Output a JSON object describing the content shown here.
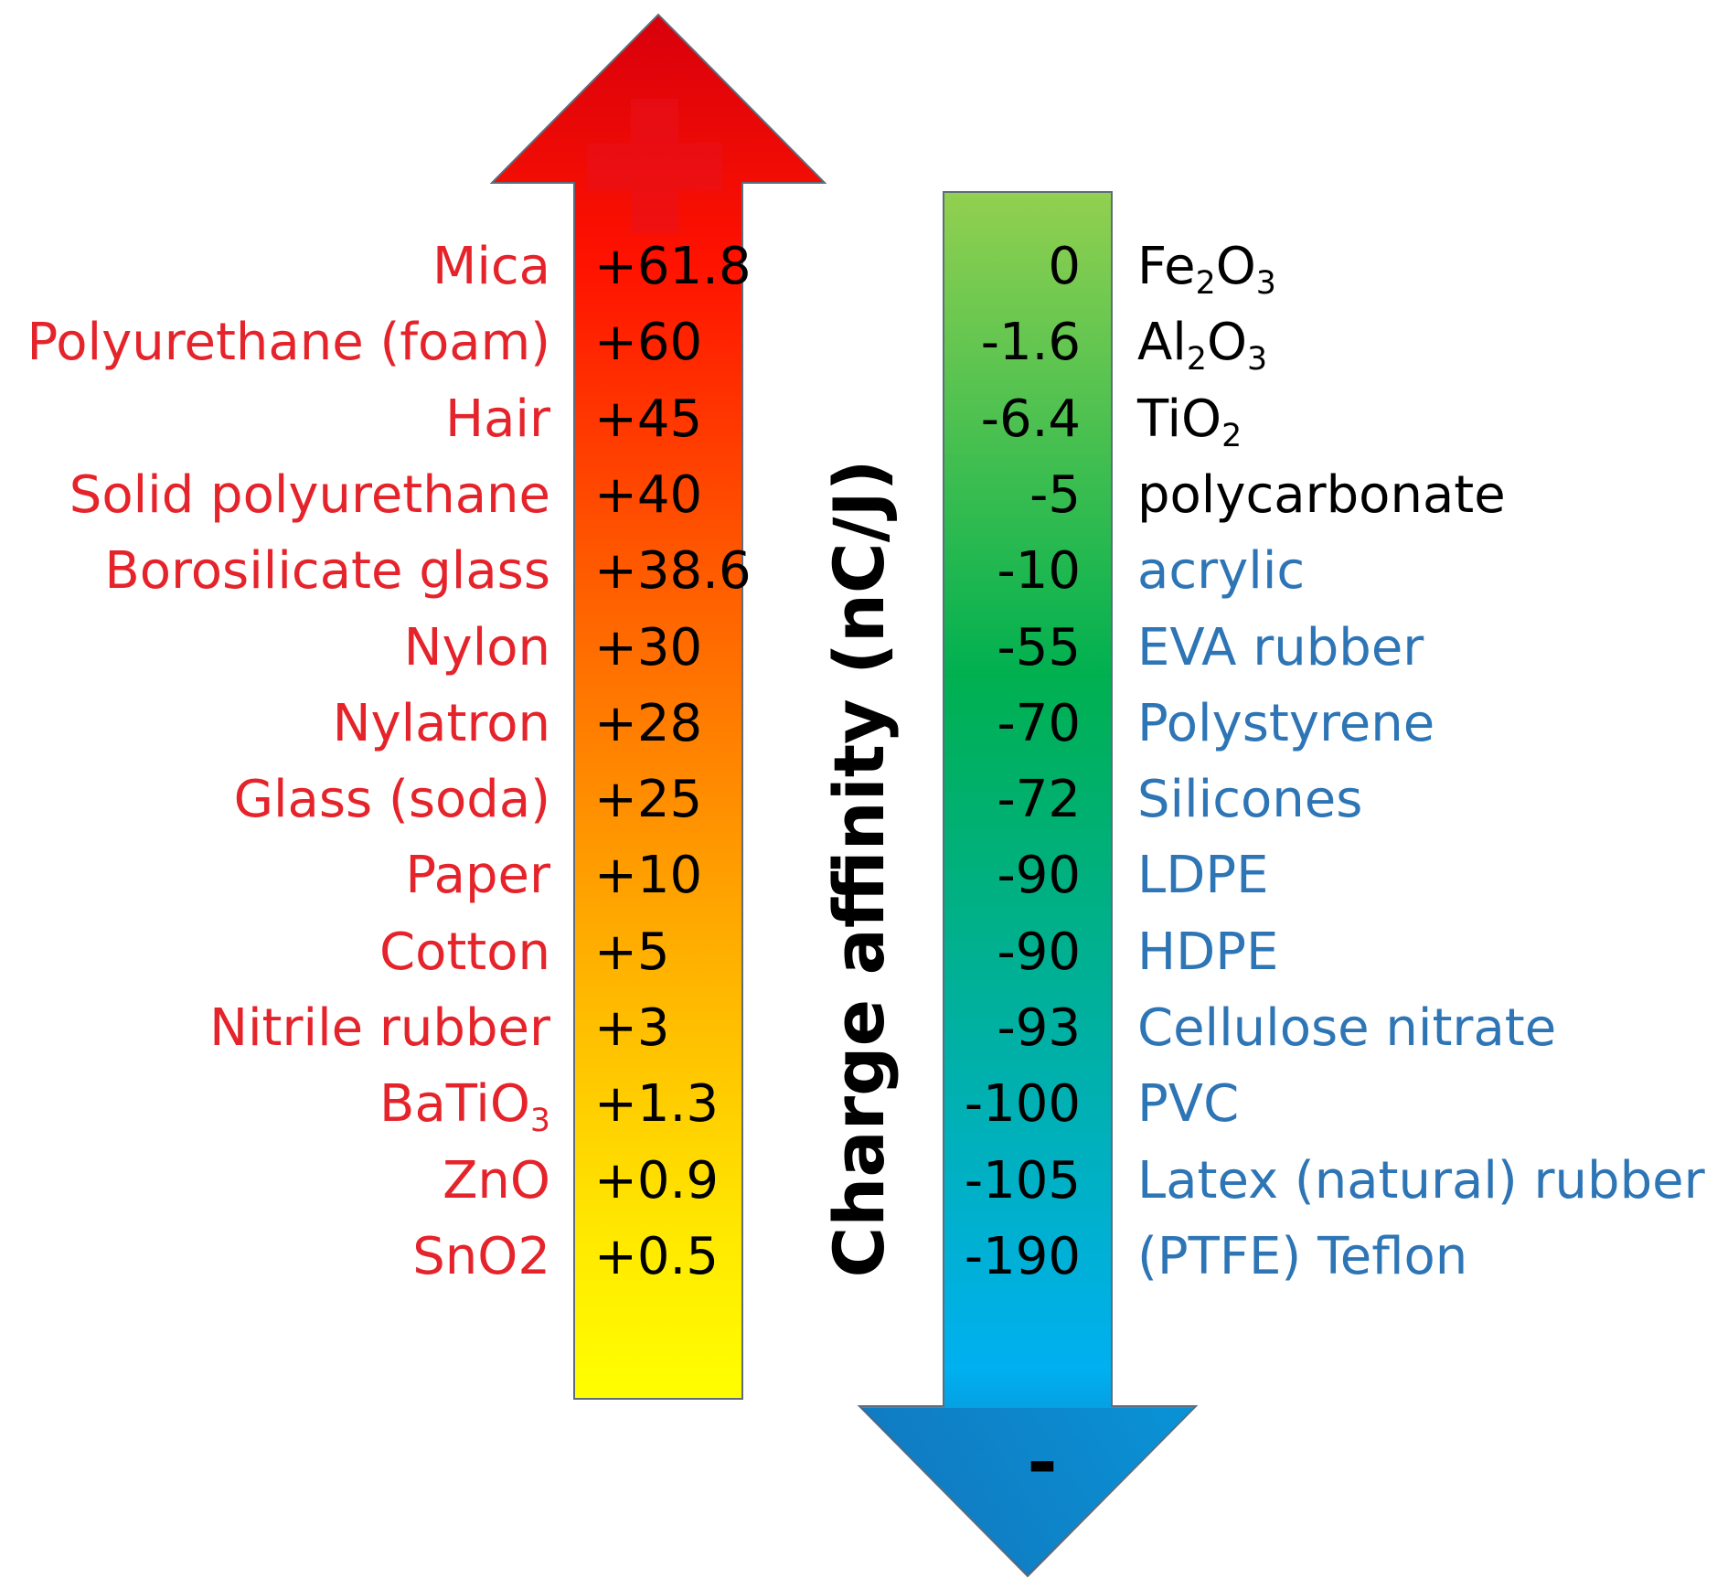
{
  "axis_label": "Charge affinity (nC/J)",
  "negative_symbol": "-",
  "colors": {
    "positive_text": "#e5232a",
    "neutral_text": "#000000",
    "negative_text": "#2e75b6",
    "positive_arrow_gradient": [
      "#d8000c",
      "#ff1200",
      "#ff6a00",
      "#ffb000",
      "#ffe800",
      "#ffff00"
    ],
    "negative_arrow_gradient": [
      "#92d050",
      "#00b050",
      "#00b0a0",
      "#00b0f0",
      "#1a5ea8"
    ]
  },
  "positive_series": [
    {
      "name": "Mica",
      "value": "+61.8"
    },
    {
      "name": "Polyurethane (foam)",
      "value": "+60"
    },
    {
      "name": "Hair",
      "value": "+45"
    },
    {
      "name": "Solid polyurethane",
      "value": "+40"
    },
    {
      "name": "Borosilicate glass",
      "value": "+38.6"
    },
    {
      "name": "Nylon",
      "value": "+30"
    },
    {
      "name": "Nylatron",
      "value": "+28"
    },
    {
      "name": "Glass (soda)",
      "value": "+25"
    },
    {
      "name": "Paper",
      "value": "+10"
    },
    {
      "name": "Cotton",
      "value": "+5"
    },
    {
      "name": "Nitrile rubber",
      "value": "+3"
    },
    {
      "name": "BaTiO",
      "name_sub": "3",
      "value": "+1.3"
    },
    {
      "name": "ZnO",
      "value": "+0.9"
    },
    {
      "name": "SnO2",
      "value": "+0.5"
    }
  ],
  "negative_series": [
    {
      "parts": [
        [
          "Fe",
          ""
        ],
        [
          "2",
          "sub"
        ],
        [
          "O",
          ""
        ],
        [
          "3",
          "sub"
        ]
      ],
      "value": "0",
      "tone": "neutral"
    },
    {
      "parts": [
        [
          "Al",
          ""
        ],
        [
          "2",
          "sub"
        ],
        [
          "O",
          ""
        ],
        [
          "3",
          "sub"
        ]
      ],
      "value": "-1.6",
      "tone": "neutral"
    },
    {
      "parts": [
        [
          "TiO",
          ""
        ],
        [
          "2",
          "sub"
        ]
      ],
      "value": "-6.4",
      "tone": "neutral"
    },
    {
      "parts": [
        [
          "polycarbonate",
          ""
        ]
      ],
      "value": "-5",
      "tone": "neutral"
    },
    {
      "parts": [
        [
          "acrylic",
          ""
        ]
      ],
      "value": "-10",
      "tone": "negative"
    },
    {
      "parts": [
        [
          "EVA rubber",
          ""
        ]
      ],
      "value": "-55",
      "tone": "negative"
    },
    {
      "parts": [
        [
          "Polystyrene",
          ""
        ]
      ],
      "value": "-70",
      "tone": "negative"
    },
    {
      "parts": [
        [
          "Silicones",
          ""
        ]
      ],
      "value": "-72",
      "tone": "negative"
    },
    {
      "parts": [
        [
          "LDPE",
          ""
        ]
      ],
      "value": "-90",
      "tone": "negative"
    },
    {
      "parts": [
        [
          "HDPE",
          ""
        ]
      ],
      "value": "-90",
      "tone": "negative"
    },
    {
      "parts": [
        [
          "Cellulose nitrate",
          ""
        ]
      ],
      "value": "-93",
      "tone": "negative"
    },
    {
      "parts": [
        [
          "PVC",
          ""
        ]
      ],
      "value": "-100",
      "tone": "negative"
    },
    {
      "parts": [
        [
          "Latex (natural) rubber",
          ""
        ]
      ],
      "value": "-105",
      "tone": "negative"
    },
    {
      "parts": [
        [
          "(PTFE) Teflon",
          ""
        ]
      ],
      "value": "-190",
      "tone": "negative"
    }
  ]
}
